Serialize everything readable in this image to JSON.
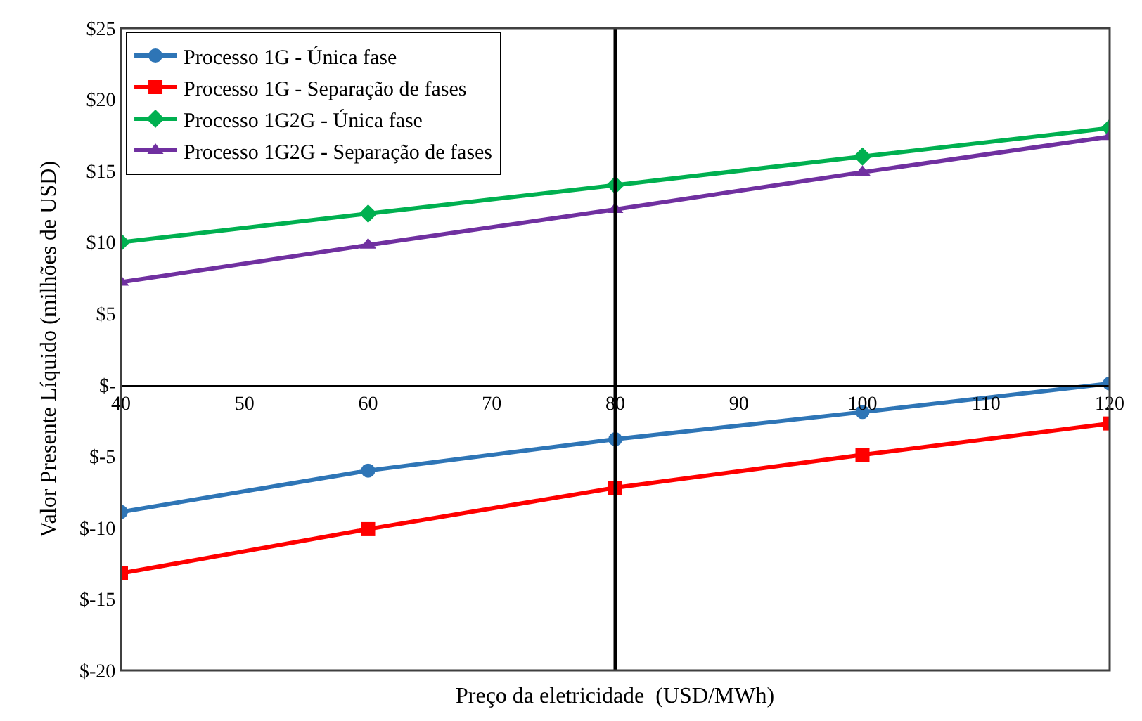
{
  "chart_data": {
    "type": "line",
    "xlabel": "Preço da eletricidade  (USD/MWh)",
    "ylabel": "Valor Presente Líquido (milhões de USD)",
    "x": [
      40,
      60,
      80,
      100,
      120
    ],
    "series": [
      {
        "name": "Processo 1G - Única fase",
        "color": "#2e75b6",
        "marker": "circle",
        "values": [
          -8.9,
          -6.0,
          -3.8,
          -1.9,
          0.1
        ]
      },
      {
        "name": "Processo 1G - Separação de fases",
        "color": "#ff0000",
        "marker": "square",
        "values": [
          -13.2,
          -10.1,
          -7.2,
          -4.9,
          -2.7
        ]
      },
      {
        "name": "Processo 1G2G - Única fase",
        "color": "#00b050",
        "marker": "diamond",
        "values": [
          10.0,
          12.0,
          14.0,
          16.0,
          18.0
        ]
      },
      {
        "name": "Processo 1G2G - Separação de fases",
        "color": "#7030a0",
        "marker": "triangle",
        "values": [
          7.2,
          9.8,
          12.3,
          14.9,
          17.4
        ]
      }
    ],
    "xlim": [
      40,
      120
    ],
    "xticks": [
      40,
      50,
      60,
      70,
      80,
      90,
      100,
      110,
      120
    ],
    "ylim": [
      -20,
      25
    ],
    "yticks": [
      {
        "value": -20,
        "label": "$-20"
      },
      {
        "value": -15,
        "label": "$-15"
      },
      {
        "value": -10,
        "label": "$-10"
      },
      {
        "value": -5,
        "label": "$-5"
      },
      {
        "value": 0,
        "label": "$-"
      },
      {
        "value": 5,
        "label": "$5"
      },
      {
        "value": 10,
        "label": "$10"
      },
      {
        "value": 15,
        "label": "$15"
      },
      {
        "value": 20,
        "label": "$20"
      },
      {
        "value": 25,
        "label": "$25"
      }
    ],
    "ref_lines": [
      {
        "axis": "x",
        "value": 80,
        "color": "#000000",
        "line_style": "solid"
      }
    ],
    "grid": false,
    "legend": "top left"
  }
}
